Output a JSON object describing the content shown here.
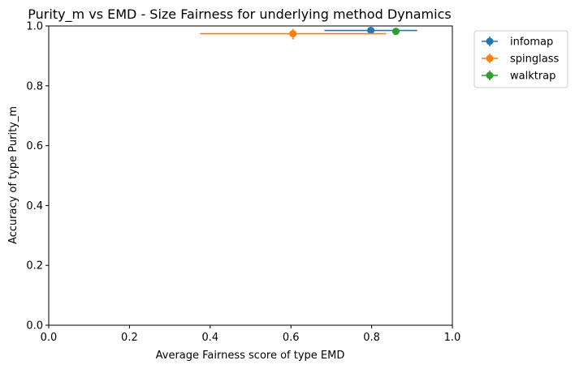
{
  "chart_data": {
    "type": "scatter",
    "title": "Purity_m vs EMD - Size Fairness for underlying method Dynamics",
    "xlabel": "Average Fairness score of type EMD",
    "ylabel": "Accuracy of type Purity_m",
    "xlim": [
      0.0,
      1.0
    ],
    "ylim": [
      0.0,
      1.0
    ],
    "xticks": [
      "0.0",
      "0.2",
      "0.4",
      "0.6",
      "0.8",
      "1.0"
    ],
    "yticks": [
      "0.0",
      "0.2",
      "0.4",
      "0.6",
      "0.8",
      "1.0"
    ],
    "grid": false,
    "legend_position": "outside-top-right",
    "series": [
      {
        "name": "infomap",
        "color": "#1f77b4",
        "x": 0.798,
        "y": 0.985,
        "xerr": [
          0.683,
          0.913
        ],
        "yerr": [
          0.985,
          0.985
        ]
      },
      {
        "name": "spinglass",
        "color": "#ff7f0e",
        "x": 0.605,
        "y": 0.974,
        "xerr": [
          0.375,
          0.836
        ],
        "yerr": [
          0.955,
          0.99
        ]
      },
      {
        "name": "walktrap",
        "color": "#2ca02c",
        "x": 0.86,
        "y": 0.982,
        "xerr": [
          0.86,
          0.86
        ],
        "yerr": [
          0.982,
          0.982
        ]
      }
    ]
  }
}
